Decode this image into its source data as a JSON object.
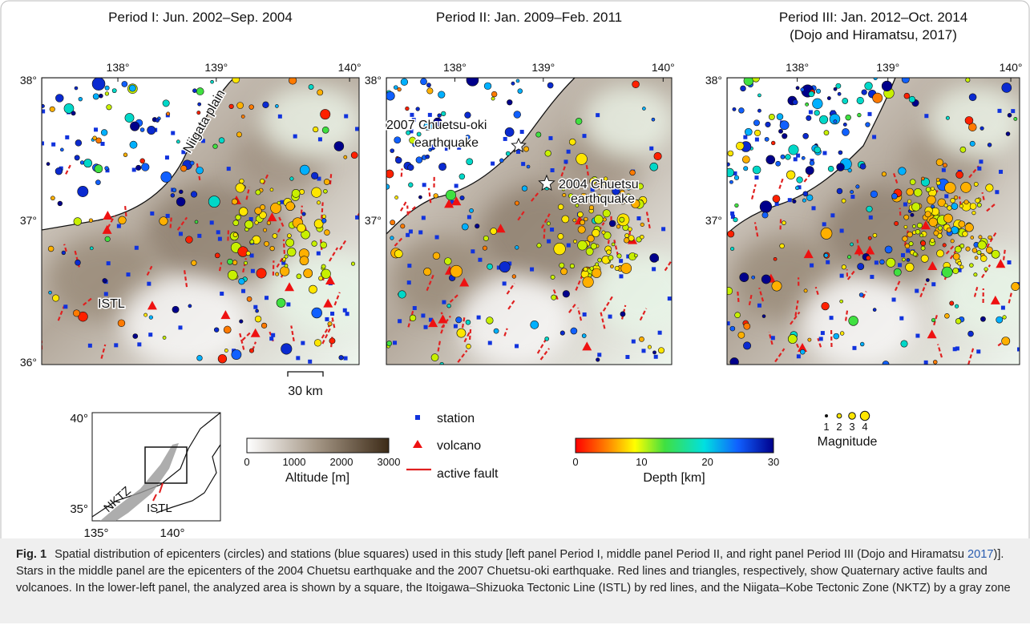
{
  "panels": [
    {
      "title": [
        "Period I: Jun. 2002–Sep. 2004"
      ],
      "x_ticks": [
        "138°",
        "139°",
        "140°"
      ],
      "y_ticks": [
        "38°",
        "37°",
        "36°"
      ],
      "annotations": [
        "Niigata plain",
        "ISTL"
      ]
    },
    {
      "title": [
        "Period II: Jan. 2009–Feb. 2011"
      ],
      "x_ticks": [
        "138°",
        "139°",
        "140°"
      ],
      "y_ticks": [
        "38°",
        "37°"
      ],
      "annotations": [
        "2007 Chuetsu-oki",
        "earthquake",
        "2004 Chuetsu",
        "earthquake"
      ]
    },
    {
      "title": [
        "Period III: Jan. 2012–Oct. 2014",
        "(Dojo and Hiramatsu, 2017)"
      ],
      "x_ticks": [
        "138°",
        "139°",
        "140°"
      ],
      "y_ticks": [
        "38°",
        "37°"
      ],
      "annotations": []
    }
  ],
  "scale_bar": "30 km",
  "inset": {
    "y_ticks": [
      "40°",
      "35°"
    ],
    "x_ticks": [
      "135°",
      "140°"
    ],
    "labels": [
      "NKTZ",
      "ISTL"
    ]
  },
  "altitude_bar": {
    "ticks": [
      0,
      1000,
      2000,
      3000
    ],
    "label": "Altitude [m]"
  },
  "symbols": [
    "station",
    "volcano",
    "active fault"
  ],
  "depth_bar": {
    "ticks": [
      0,
      10,
      20,
      30
    ],
    "label": "Depth [km]"
  },
  "magnitude": {
    "ticks": [
      1,
      2,
      3,
      4
    ],
    "label": "Magnitude"
  },
  "caption": {
    "label": "Fig. 1",
    "before_link": "Spatial distribution of epicenters (circles) and stations (blue squares) used in this study [left panel Period I, middle panel Period II, and right panel Period III (Dojo and Hiramatsu ",
    "link": "2017",
    "after_link": ")]. Stars in the middle panel are the epicenters of the 2004 Chuetsu earthquake and the 2007 Chuetsu-oki earthquake. Red lines and triangles, respectively, show Quaternary active faults and volcanoes. In the lower-left panel, the analyzed area is shown by a square, the Itoigawa–Shizuoka Tectonic Line (ISTL) by red lines, and the Niigata–Kobe Tectonic Zone (NKTZ) by a gray zone"
  }
}
